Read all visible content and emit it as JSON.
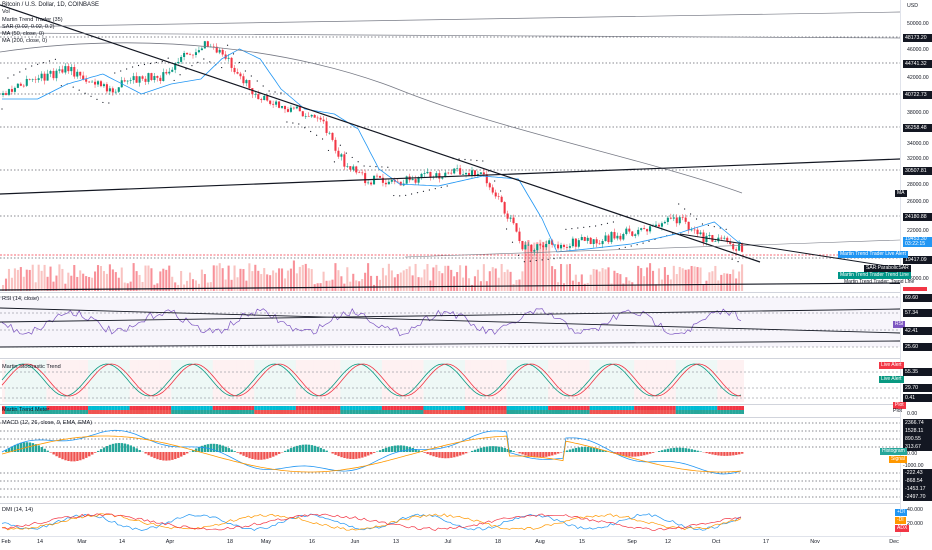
{
  "legend": {
    "symbol_title": "Bitcoin / U.S. Dollar, 1D, COINBASE",
    "vol": "Vol",
    "martin_trend_trader": "Martin Trend Trader (35)",
    "sar": "SAR (0.02, 0.02, 0.2)",
    "ma50": "MA (50, close, 0)",
    "ma200": "MA (200, close, 0)",
    "rsi": "RSI (14, close)",
    "stoch": "Martin Stochastic Trend",
    "trend_meter": "Martin Trend Meter",
    "macd": "MACD (12, 26, close, 9, EMA, EMA)",
    "dmi": "DMI (14, 14)"
  },
  "price_axis": {
    "currency": "USD",
    "ticks": [
      "50000.00",
      "48173.20",
      "46000.00",
      "44741.32",
      "42000.00",
      "40722.73",
      "38000.00",
      "36258.48",
      "34000.00",
      "32000.00",
      "30507.81",
      "28000.00",
      "26000.00",
      "24180.88",
      "22000.00",
      "19453.30",
      "19417.09",
      "16000.00",
      "14000.00"
    ],
    "ma_badge": "MA",
    "current_price": "19453.30",
    "countdown": "03:22:15",
    "level_19417": "19417.09",
    "level_24180": "24180.88",
    "level_30507": "30507.81",
    "level_36258": "36258.48",
    "level_40722": "40722.73",
    "level_44741": "44741.32",
    "level_48173": "48173.20"
  },
  "badges": {
    "live_alert_trend_line": "Martin Trend Trader Live Alert",
    "sar_parabolic": "SAR:ParabolicSAR",
    "trend_trader_trend_line": "Martin Trend Trader Trend Line",
    "trend_trader_trend_line_2": "Martin Trend Trader: Trend Line",
    "stoch_live_alert_red": "Live Alert",
    "stoch_live_alert_green": "Live Alert",
    "rsi_badge": "RSI",
    "histogram": "Histogram",
    "signal": "Signal",
    "plot": "Plot",
    "plot2": "Plot",
    "di_plus": "+DI",
    "di_minus": "-DI",
    "adx": "ADX"
  },
  "rsi_axis": [
    "69.60",
    "57.34",
    "42.41",
    "25.60"
  ],
  "stoch_axis": [
    "55.35",
    "29.70",
    "0.41"
  ],
  "trend_meter_axis": [
    "0.00"
  ],
  "macd_axis": [
    "2366.74",
    "1528.11",
    "890.55",
    "313.67",
    "0.00",
    "-1000.00",
    "-222.43",
    "-868.54",
    "-1453.17",
    "-2497.70"
  ],
  "dmi_axis": [
    "40.000",
    "20.000"
  ],
  "time_axis": [
    "Feb",
    "14",
    "Mar",
    "14",
    "Apr",
    "18",
    "May",
    "16",
    "Jun",
    "13",
    "Jul",
    "18",
    "Aug",
    "15",
    "Sep",
    "12",
    "Oct",
    "17",
    "Nov",
    "Dec"
  ],
  "colors": {
    "bull": "#089981",
    "bear": "#f23645",
    "ma50": "#2196f3",
    "ma200": "#787b86",
    "trend_line": "#131722",
    "rsi_fill": "#7e57c2"
  },
  "icons": {
    "camera": "camera-icon"
  }
}
